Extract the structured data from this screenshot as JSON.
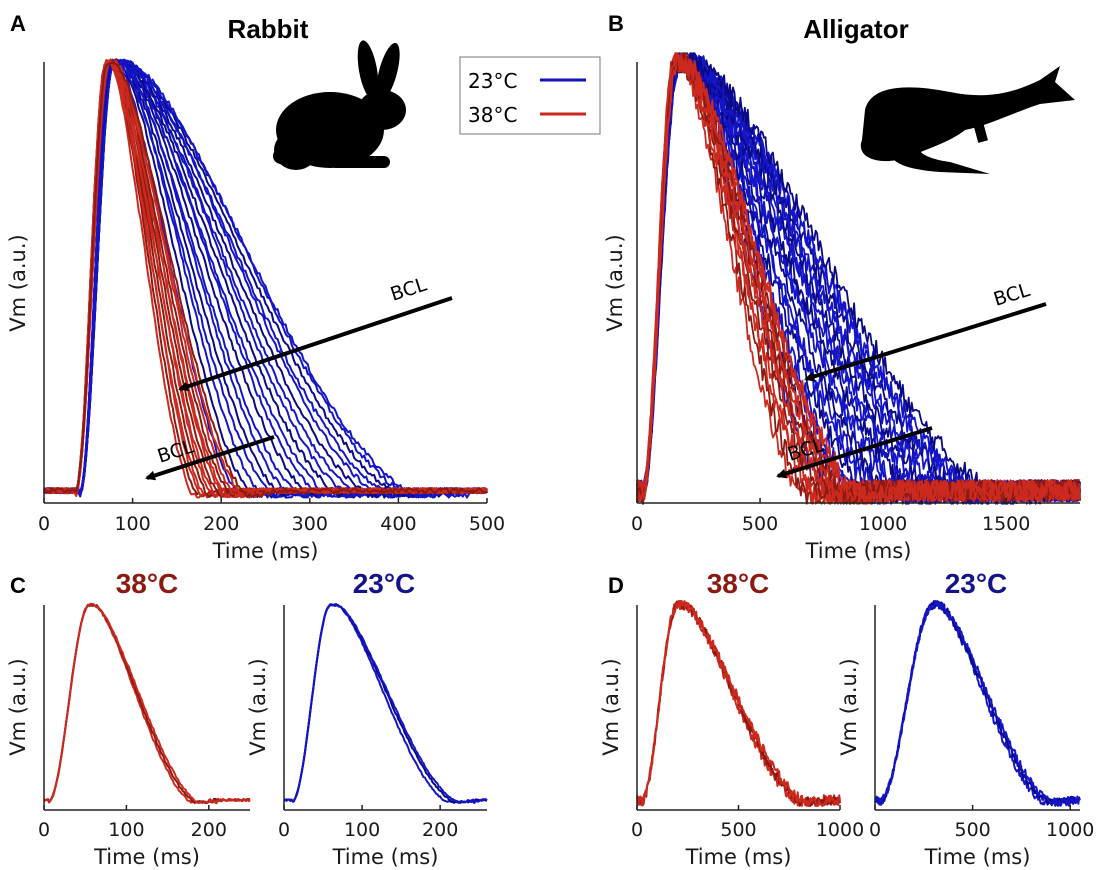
{
  "colors": {
    "cold": "#1515c8",
    "cold_dark": "#0a0a86",
    "warm": "#cc2a1e",
    "warm_dark": "#8a1a12",
    "axis": "#222222"
  },
  "legend": {
    "items": [
      {
        "label": "23°C",
        "color": "#1414b4"
      },
      {
        "label": "38°C",
        "color": "#c8281e"
      }
    ]
  },
  "annotations": {
    "bcl": "BCL"
  },
  "panels": {
    "A": {
      "letter": "A",
      "title": "Rabbit",
      "icon": "rabbit-silhouette-icon"
    },
    "B": {
      "letter": "B",
      "title": "Alligator",
      "icon": "alligator-silhouette-icon"
    },
    "C": {
      "letter": "C"
    },
    "D": {
      "letter": "D"
    }
  },
  "chart_data": [
    {
      "id": "A",
      "type": "line",
      "title": "Rabbit",
      "xlabel": "Time (ms)",
      "ylabel": "Vm (a.u.)",
      "xlim": [
        0,
        500
      ],
      "ylim": [
        0,
        1
      ],
      "xticks": [
        0,
        100,
        200,
        300,
        400,
        500
      ],
      "series": [
        {
          "name": "23°C",
          "upstroke_ms": [
            40,
            75
          ],
          "apd_end_ms": [
            245,
            262,
            275,
            290,
            300,
            312,
            325,
            340,
            352,
            365,
            378,
            390,
            405,
            418,
            432,
            445,
            458,
            470,
            480
          ]
        },
        {
          "name": "38°C",
          "upstroke_ms": [
            35,
            70
          ],
          "apd_end_ms": [
            185,
            190,
            195,
            200,
            205,
            210,
            215,
            220,
            225,
            230,
            235,
            240,
            250,
            255
          ]
        }
      ]
    },
    {
      "id": "B",
      "type": "line",
      "title": "Alligator",
      "xlabel": "Time (ms)",
      "ylabel": "Vm (a.u.)",
      "xlim": [
        0,
        1800
      ],
      "ylim": [
        0,
        1
      ],
      "xticks": [
        0,
        500,
        1000,
        1500
      ],
      "series": [
        {
          "name": "23°C",
          "upstroke_ms": [
            20,
            160
          ],
          "apd_end_ms": [
            900,
            960,
            1010,
            1050,
            1090,
            1120,
            1160,
            1200,
            1240,
            1280,
            1320,
            1360,
            1400,
            1440,
            1480,
            1520,
            1560,
            1600,
            1640,
            1700
          ]
        },
        {
          "name": "38°C",
          "upstroke_ms": [
            20,
            150
          ],
          "apd_end_ms": [
            760,
            790,
            820,
            850,
            870,
            890,
            910,
            930,
            950,
            970,
            990,
            1010,
            1040
          ]
        }
      ]
    },
    {
      "id": "C38",
      "type": "line",
      "title": "38°C",
      "xlabel": "Time (ms)",
      "ylabel": "Vm (a.u.)",
      "xlim": [
        0,
        250
      ],
      "xticks": [
        0,
        100,
        200
      ],
      "series": [
        {
          "name": "38°C",
          "upstroke_ms": [
            5,
            55
          ],
          "apd_end_ms": [
            200,
            205,
            210
          ]
        }
      ]
    },
    {
      "id": "C23",
      "type": "line",
      "title": "23°C",
      "xlabel": "Time (ms)",
      "ylabel": "Vm (a.u.)",
      "xlim": [
        0,
        260
      ],
      "xticks": [
        0,
        100,
        200
      ],
      "series": [
        {
          "name": "23°C",
          "upstroke_ms": [
            10,
            60
          ],
          "apd_end_ms": [
            235,
            245,
            250
          ]
        }
      ]
    },
    {
      "id": "D38",
      "type": "line",
      "title": "38°C",
      "xlabel": "Time (ms)",
      "ylabel": "Vm (a.u.)",
      "xlim": [
        0,
        1000
      ],
      "xticks": [
        0,
        500,
        1000
      ],
      "series": [
        {
          "name": "38°C",
          "upstroke_ms": [
            20,
            200
          ],
          "apd_end_ms": [
            900,
            920,
            940
          ]
        }
      ]
    },
    {
      "id": "D23",
      "type": "line",
      "title": "23°C",
      "xlabel": "Time (ms)",
      "ylabel": "Vm (a.u.)",
      "xlim": [
        0,
        1050
      ],
      "xticks": [
        0,
        500,
        1000
      ],
      "series": [
        {
          "name": "23°C",
          "upstroke_ms": [
            20,
            300
          ],
          "apd_end_ms": [
            960,
            990,
            1010
          ]
        }
      ]
    }
  ]
}
